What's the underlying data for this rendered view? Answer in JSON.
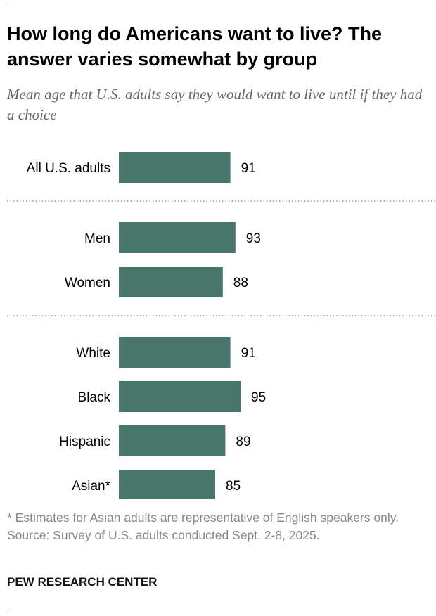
{
  "title": "How long do Americans want to live? The answer varies somewhat by group",
  "subtitle": "Mean age that U.S. adults say they would want to live until if they had a choice",
  "notes": {
    "footnote": "* Estimates for Asian adults are representative of English speakers only.",
    "source": "Source: Survey of U.S. adults conducted Sept. 2-8, 2025."
  },
  "brand": "PEW RESEARCH CENTER",
  "colors": {
    "bar": "#48766A"
  },
  "chart_data": {
    "type": "bar",
    "orientation": "horizontal",
    "categories": [
      "All U.S. adults",
      "Men",
      "Women",
      "White",
      "Black",
      "Hispanic",
      "Asian*"
    ],
    "values": [
      91,
      93,
      88,
      91,
      95,
      89,
      85
    ],
    "groups": [
      [
        "All U.S. adults"
      ],
      [
        "Men",
        "Women"
      ],
      [
        "White",
        "Black",
        "Hispanic",
        "Asian*"
      ]
    ],
    "data_labels": true,
    "grid": false
  }
}
